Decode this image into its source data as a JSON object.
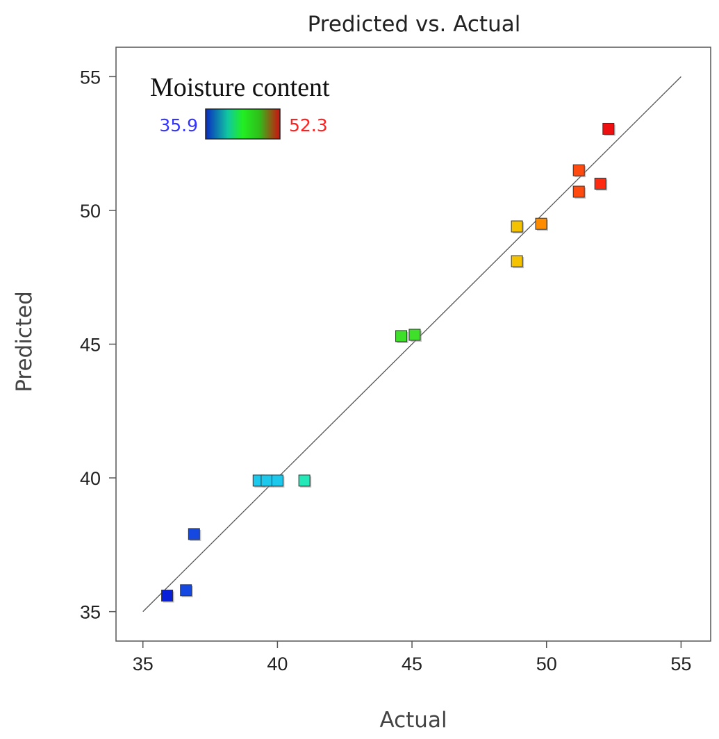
{
  "chart_data": {
    "type": "scatter",
    "title": "Predicted vs. Actual",
    "xlabel": "Actual",
    "ylabel": "Predicted",
    "xlim": [
      34,
      56.1
    ],
    "ylim": [
      33.9,
      56.1
    ],
    "xticks": [
      35,
      40,
      45,
      50,
      55
    ],
    "yticks": [
      35,
      40,
      45,
      50,
      55
    ],
    "reference_line": {
      "from": [
        35,
        35
      ],
      "to": [
        55,
        55
      ]
    },
    "color_legend": {
      "title": "Moisture content",
      "min": 35.9,
      "max": 52.3,
      "min_label": "35.9",
      "max_label": "52.3",
      "min_color": "#3333ff",
      "max_color": "#ff2020"
    },
    "points": [
      {
        "x": 35.9,
        "y": 35.6,
        "color": "#0a1fd8"
      },
      {
        "x": 36.6,
        "y": 35.8,
        "color": "#1448e0"
      },
      {
        "x": 36.9,
        "y": 37.9,
        "color": "#1448e0"
      },
      {
        "x": 39.3,
        "y": 39.9,
        "color": "#1cc8ec"
      },
      {
        "x": 39.6,
        "y": 39.9,
        "color": "#1cc8ec"
      },
      {
        "x": 40.0,
        "y": 39.9,
        "color": "#1cc8ec"
      },
      {
        "x": 41.0,
        "y": 39.9,
        "color": "#25e8b8"
      },
      {
        "x": 44.6,
        "y": 45.3,
        "color": "#3ee02a"
      },
      {
        "x": 45.1,
        "y": 45.35,
        "color": "#3ee02a"
      },
      {
        "x": 48.9,
        "y": 49.4,
        "color": "#f5c200"
      },
      {
        "x": 48.9,
        "y": 48.1,
        "color": "#f5c200"
      },
      {
        "x": 49.8,
        "y": 49.5,
        "color": "#ff8c00"
      },
      {
        "x": 51.2,
        "y": 51.5,
        "color": "#ff4a10"
      },
      {
        "x": 51.2,
        "y": 50.7,
        "color": "#ff4a10"
      },
      {
        "x": 52.0,
        "y": 51.0,
        "color": "#ff2a10"
      },
      {
        "x": 52.3,
        "y": 53.05,
        "color": "#ee1010"
      }
    ]
  }
}
